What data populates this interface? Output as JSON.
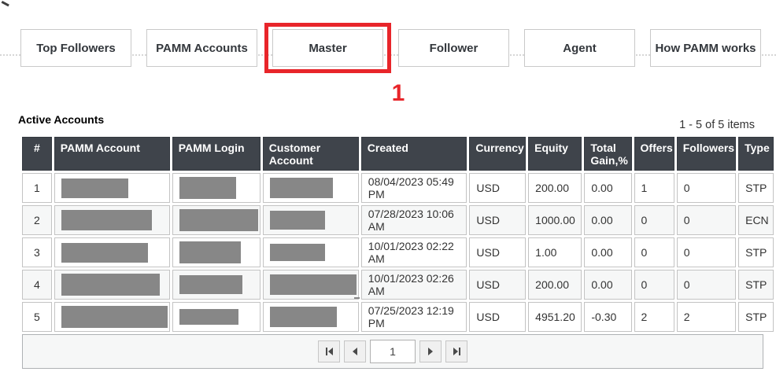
{
  "tabs": [
    {
      "label": "Top Followers"
    },
    {
      "label": "PAMM Accounts"
    },
    {
      "label": "Master",
      "highlighted": true
    },
    {
      "label": "Follower"
    },
    {
      "label": "Agent"
    },
    {
      "label": "How PAMM works"
    }
  ],
  "annotation": {
    "step_number": "1"
  },
  "section": {
    "title": "Active Accounts",
    "items_summary": "1 - 5 of 5 items"
  },
  "table": {
    "columns": [
      "#",
      "PAMM Account",
      "PAMM Login",
      "Customer Account",
      "Created",
      "Currency",
      "Equity",
      "Total Gain,%",
      "Offers",
      "Followers",
      "Type"
    ],
    "rows": [
      {
        "index": "1",
        "pamm_account": "[redacted]",
        "pamm_login": "[redacted]",
        "customer_account": "[redacted]",
        "created": "08/04/2023 05:49 PM",
        "currency": "USD",
        "equity": "200.00",
        "total_gain": "0.00",
        "offers": "1",
        "followers": "0",
        "type": "STP",
        "redactions": {
          "pamm_account": [
            85,
            25
          ],
          "pamm_login": [
            72,
            28
          ],
          "customer_account": [
            80,
            26
          ]
        }
      },
      {
        "index": "2",
        "pamm_account": "[redacted]",
        "pamm_login": "[redacted]",
        "customer_account": "[redacted]",
        "created": "07/28/2023 10:06 AM",
        "currency": "USD",
        "equity": "1000.00",
        "total_gain": "0.00",
        "offers": "0",
        "followers": "0",
        "type": "ECN",
        "redactions": {
          "pamm_account": [
            115,
            26
          ],
          "pamm_login": [
            100,
            28
          ],
          "customer_account": [
            70,
            24
          ]
        }
      },
      {
        "index": "3",
        "pamm_account": "[redacted]",
        "pamm_login": "[redacted]",
        "customer_account": "[redacted]",
        "created": "10/01/2023 02:22 AM",
        "currency": "USD",
        "equity": "1.00",
        "total_gain": "0.00",
        "offers": "0",
        "followers": "0",
        "type": "STP",
        "redactions": {
          "pamm_account": [
            110,
            25
          ],
          "pamm_login": [
            78,
            28
          ],
          "customer_account": [
            70,
            22
          ]
        }
      },
      {
        "index": "4",
        "pamm_account": "[redacted]",
        "pamm_login": "[redacted]",
        "customer_account": "[redacted]",
        "created": "10/01/2023 02:26 AM",
        "currency": "USD",
        "equity": "200.00",
        "total_gain": "0.00",
        "offers": "0",
        "followers": "0",
        "type": "STP",
        "redactions": {
          "pamm_account": [
            125,
            28
          ],
          "pamm_login": [
            80,
            24
          ],
          "customer_account": [
            110,
            26
          ],
          "tail": true
        }
      },
      {
        "index": "5",
        "pamm_account": "[redacted]",
        "pamm_login": "[redacted]",
        "customer_account": "[redacted]",
        "created": "07/25/2023 12:19 PM",
        "currency": "USD",
        "equity": "4951.20",
        "total_gain": "-0.30",
        "offers": "2",
        "followers": "2",
        "type": "STP",
        "redactions": {
          "pamm_account": [
            135,
            28
          ],
          "pamm_login": [
            75,
            20
          ],
          "customer_account": [
            85,
            26
          ]
        }
      }
    ]
  },
  "pagination": {
    "current_page": "1"
  },
  "colors": {
    "accent_red": "#e8252a",
    "header_bg": "#3f444b",
    "redaction_gray": "#878787"
  }
}
